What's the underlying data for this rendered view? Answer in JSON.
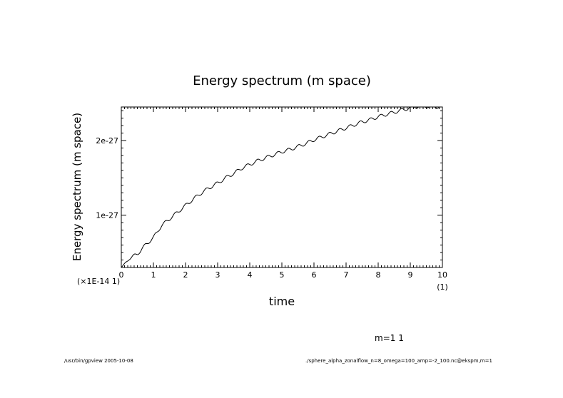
{
  "chart_data": {
    "type": "line",
    "title": "Energy spectrum (m space)",
    "xlabel": "time",
    "ylabel": "Energy spectrum (m space)",
    "x_unit_label": "(1)",
    "y_scale_label": "(×1E-14 1)",
    "xlim": [
      0,
      10
    ],
    "ylim": [
      3e-28,
      2.45e-27
    ],
    "x_ticks": [
      "0",
      "1",
      "2",
      "3",
      "4",
      "5",
      "6",
      "7",
      "8",
      "9",
      "10"
    ],
    "y_ticks": [
      {
        "value": 1e-27,
        "label": "1e-27"
      },
      {
        "value": 2e-27,
        "label": "2e-27"
      }
    ],
    "legend": "m=1 1",
    "series": [
      {
        "name": "m=1",
        "x": [
          0,
          0.25,
          0.5,
          0.75,
          1.0,
          1.25,
          1.5,
          1.75,
          2.0,
          2.25,
          2.5,
          2.75,
          3.0,
          3.25,
          3.5,
          3.75,
          4.0,
          4.25,
          4.5,
          4.75,
          5.0,
          5.25,
          5.5,
          5.75,
          6.0,
          6.25,
          6.5,
          6.75,
          7.0,
          7.25,
          7.5,
          7.75,
          8.0,
          8.25,
          8.5,
          8.75,
          9.0,
          9.25,
          9.5,
          9.75,
          10.0
        ],
        "values": [
          3e-28,
          4.2e-28,
          4.8e-28,
          6e-28,
          7e-28,
          8.6e-28,
          9.5e-28,
          1.04e-27,
          1.13e-27,
          1.22e-27,
          1.3e-27,
          1.37e-27,
          1.43e-27,
          1.5e-27,
          1.56e-27,
          1.63e-27,
          1.68e-27,
          1.73e-27,
          1.77e-27,
          1.81e-27,
          1.85e-27,
          1.88e-27,
          1.92e-27,
          1.96e-27,
          2.01e-27,
          2.05e-27,
          2.09e-27,
          2.13e-27,
          2.17e-27,
          2.21e-27,
          2.25e-27,
          2.28e-27,
          2.32e-27,
          2.35e-27,
          2.38e-27,
          2.41e-27,
          2.44e-27,
          2.46e-27,
          2.46e-27,
          2.45e-27,
          2.46e-27
        ]
      }
    ]
  },
  "footer": {
    "left": "/usr/bin/gpview  2005-10-08",
    "right": "./sphere_alpha_zonalflow_n=8_omega=100_amp=-2_100.nc@ekspm,m=1"
  }
}
